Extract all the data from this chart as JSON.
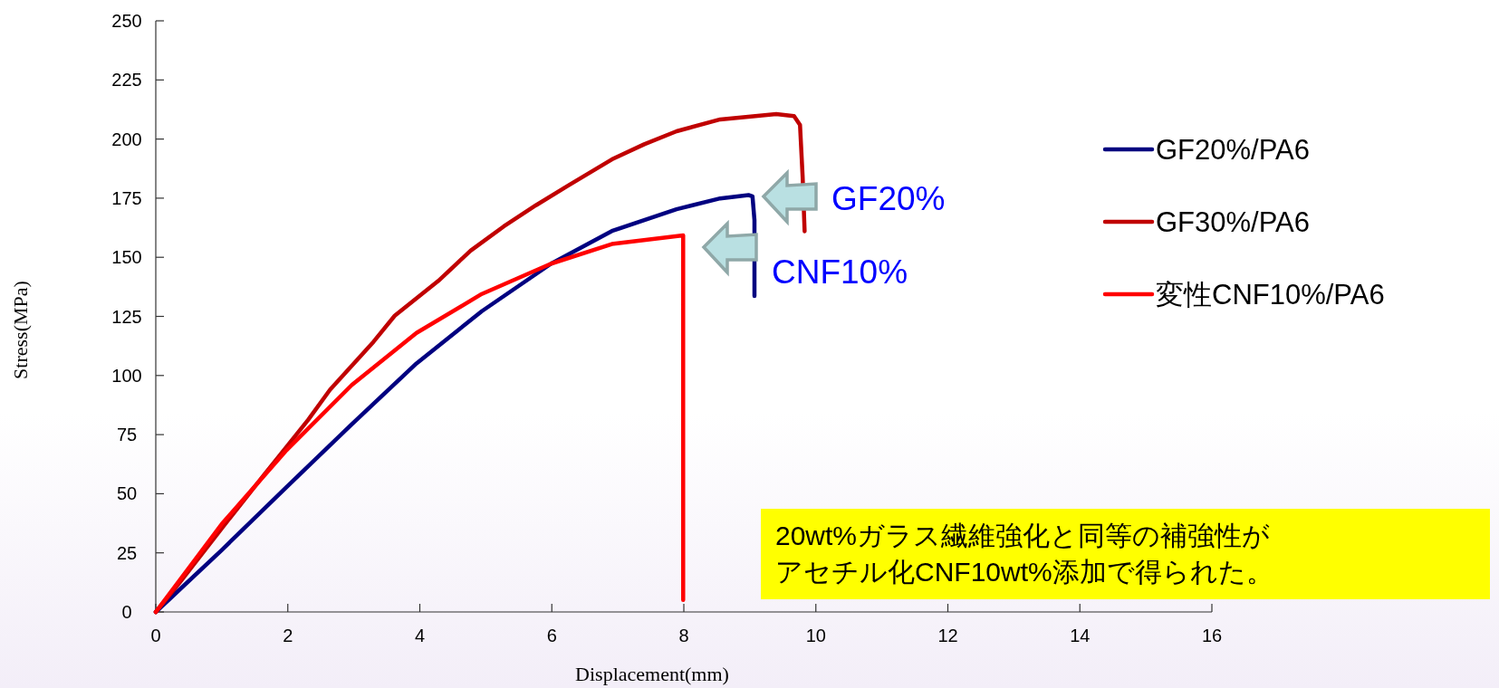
{
  "chart_data": {
    "type": "line",
    "xlabel": "Displacement(mm)",
    "ylabel": "Stress(MPa)",
    "xlim": [
      0,
      16
    ],
    "xticks": [
      0,
      2,
      4,
      6,
      8,
      10,
      12,
      14,
      16
    ],
    "ylim": [
      0,
      250
    ],
    "yticks": [
      0,
      25,
      50,
      75,
      100,
      125,
      150,
      175,
      200,
      225,
      250
    ],
    "grid": false,
    "legend": "right",
    "marker": "none",
    "line_style": "solid",
    "series": [
      {
        "name": "GF20%/PA6",
        "color": "#000080",
        "x": [
          0,
          1.0,
          1.98,
          2.97,
          3.95,
          4.94,
          5.99,
          6.91,
          7.89,
          8.55,
          8.98,
          9.04,
          9.07,
          9.07
        ],
        "values": [
          0,
          26.2,
          52.8,
          79.4,
          105.1,
          127.2,
          147.3,
          161.1,
          170.3,
          174.9,
          176.3,
          175.8,
          165.7,
          133.6
        ]
      },
      {
        "name": "GF30%/PA6",
        "color": "#c00000",
        "x": [
          0,
          0.34,
          1.0,
          1.65,
          2.31,
          2.64,
          3.3,
          3.62,
          4.28,
          4.77,
          5.27,
          5.76,
          6.25,
          6.91,
          7.4,
          7.89,
          8.55,
          9.4,
          9.67,
          9.76,
          9.8,
          9.83
        ],
        "values": [
          0,
          11.6,
          35.4,
          58.3,
          81.3,
          94,
          114.3,
          125.3,
          140,
          152.8,
          163,
          172,
          180.4,
          191.4,
          197.8,
          203.3,
          208.3,
          210.6,
          209.7,
          206,
          184,
          161
        ]
      },
      {
        "name": "変性CNF10%/PA6",
        "color": "#ff0000",
        "x": [
          0,
          1.0,
          1.98,
          2.97,
          3.95,
          4.94,
          5.99,
          6.91,
          7.99,
          7.99,
          7.99
        ],
        "values": [
          0,
          37.2,
          68.4,
          96,
          118,
          134.5,
          147.3,
          155.6,
          159.3,
          110.6,
          5.1
        ]
      }
    ],
    "annotations": [
      "GF20%",
      "CNF10%",
      "20wt%ガラス繊維強化と同等の補強性が",
      "アセチル化CNF10wt%添加で得られた。"
    ]
  }
}
